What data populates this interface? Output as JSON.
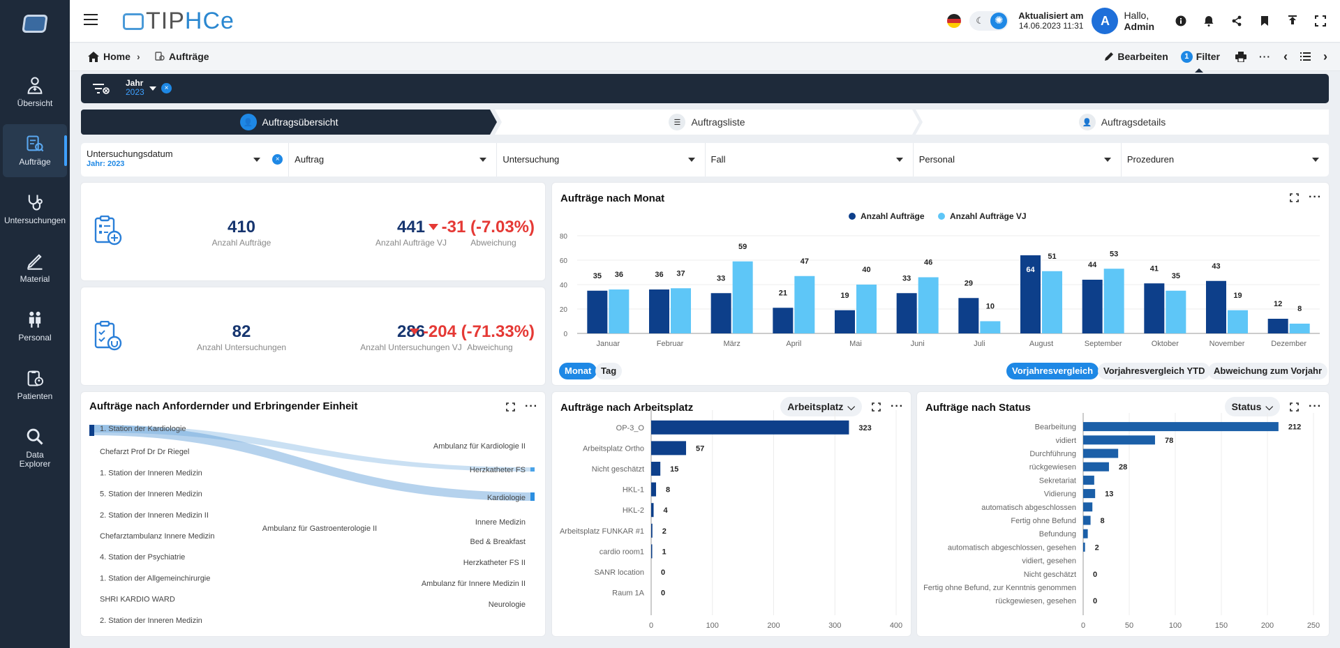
{
  "brand": {
    "name_a": "TIP",
    "name_b": "HCe"
  },
  "sidebar": {
    "items": [
      {
        "label": "Übersicht"
      },
      {
        "label": "Aufträge"
      },
      {
        "label": "Untersuchungen"
      },
      {
        "label": "Material"
      },
      {
        "label": "Personal"
      },
      {
        "label": "Patienten"
      },
      {
        "label": "Data Explorer"
      }
    ]
  },
  "header": {
    "updated_label": "Aktualisiert am",
    "updated_value": "14.06.2023 11:31",
    "avatar_letter": "A",
    "greeting": "Hallo,",
    "user": "Admin"
  },
  "breadcrumb": {
    "home": "Home",
    "current": "Aufträge",
    "edit": "Bearbeiten",
    "filter_count": "1",
    "filter": "Filter"
  },
  "filterbar": {
    "label": "Jahr",
    "value": "2023",
    "clear": "×"
  },
  "steps": [
    "Auftragsübersicht",
    "Auftragsliste",
    "Auftragsdetails"
  ],
  "dropdowns": [
    {
      "label": "Untersuchungsdatum",
      "value": "Jahr: 2023"
    },
    {
      "label": "Auftrag"
    },
    {
      "label": "Untersuchung"
    },
    {
      "label": "Fall"
    },
    {
      "label": "Personal"
    },
    {
      "label": "Prozeduren"
    }
  ],
  "kpi1": {
    "a_val": "410",
    "a_lbl": "Anzahl Aufträge",
    "b_val": "441",
    "b_lbl": "Anzahl Aufträge VJ",
    "c_val": "-31 (-7.03%)",
    "c_lbl": "Abweichung"
  },
  "kpi2": {
    "a_val": "82",
    "a_lbl": "Anzahl Untersuchungen",
    "b_val": "286",
    "b_lbl": "Anzahl Untersuchungen VJ",
    "c_val": "-204 (-71.33%)",
    "c_lbl": "Abweichung"
  },
  "monthly": {
    "title": "Aufträge nach Monat",
    "toggle": [
      "Monat",
      "Tag"
    ],
    "compare": [
      "Vorjahresvergleich",
      "Vorjahresvergleich YTD",
      "Abweichung zum Vorjahr"
    ]
  },
  "sankey": {
    "title": "Aufträge nach Anfordernder und Erbringender Einheit",
    "left": [
      "1. Station der Kardiologie",
      "Chefarzt Prof Dr Dr Riegel",
      "1. Station der Inneren Medizin",
      "5. Station der Inneren Medizin",
      "2. Station der Inneren Medizin II",
      "Chefarztambulanz Innere Medizin",
      "4. Station der Psychiatrie",
      "1. Station der Allgemeinchirurgie",
      "SHRI KARDIO WARD",
      "2. Station der Inneren Medizin"
    ],
    "right": [
      "Ambulanz für Kardiologie II",
      "Herzkatheter FS",
      "Kardiologie",
      "Innere Medizin",
      "Bed & Breakfast",
      "Herzkatheter FS II",
      "Ambulanz für Innere Medizin II",
      "Neurologie"
    ],
    "middle": "Ambulanz für Gastroenterologie II"
  },
  "arbeitsplatz": {
    "title": "Aufträge nach Arbeitsplatz",
    "select": "Arbeitsplatz"
  },
  "status": {
    "title": "Aufträge nach Status",
    "select": "Status"
  },
  "chart_data": [
    {
      "id": "monthly",
      "type": "bar",
      "title": "Aufträge nach Monat",
      "categories": [
        "Januar",
        "Februar",
        "März",
        "April",
        "Mai",
        "Juni",
        "Juli",
        "August",
        "September",
        "Oktober",
        "November",
        "Dezember"
      ],
      "series": [
        {
          "name": "Anzahl Aufträge",
          "color": "#0d3f8a",
          "values": [
            35,
            36,
            33,
            21,
            19,
            33,
            29,
            64,
            44,
            41,
            43,
            12
          ]
        },
        {
          "name": "Anzahl Aufträge VJ",
          "color": "#5ec6f7",
          "values": [
            36,
            37,
            59,
            47,
            40,
            46,
            10,
            51,
            53,
            35,
            19,
            8
          ]
        }
      ],
      "ylim": [
        0,
        80
      ],
      "yticks": [
        0,
        20,
        40,
        60,
        80
      ],
      "legend": "top-center"
    },
    {
      "id": "arbeitsplatz",
      "type": "bar",
      "orientation": "horizontal",
      "title": "Aufträge nach Arbeitsplatz",
      "categories": [
        "OP-3_O",
        "Arbeitsplatz Ortho",
        "Nicht geschätzt",
        "HKL-1",
        "HKL-2",
        "Arbeitsplatz FUNKAR #1",
        "cardio room1",
        "SANR location",
        "Raum 1A"
      ],
      "values": [
        323,
        57,
        15,
        8,
        4,
        2,
        1,
        0,
        0
      ],
      "xlim": [
        0,
        400
      ],
      "xticks": [
        0,
        100,
        200,
        300,
        400
      ]
    },
    {
      "id": "status",
      "type": "bar",
      "orientation": "horizontal",
      "title": "Aufträge nach Status",
      "categories": [
        "Bearbeitung",
        "vidiert",
        "Durchführung",
        "rückgewiesen",
        "Sekretariat",
        "Vidierung",
        "automatisch abgeschlossen",
        "Fertig ohne Befund",
        "Befundung",
        "automatisch abgeschlossen, gesehen",
        "vidiert, gesehen",
        "Nicht geschätzt",
        "Fertig ohne Befund, zur Kenntnis genommen",
        "rückgewiesen, gesehen"
      ],
      "values": [
        212,
        78,
        38,
        28,
        12,
        13,
        10,
        8,
        5,
        2,
        0,
        0,
        0,
        0
      ],
      "labels": [
        "212",
        "78",
        "",
        "28",
        "",
        "13",
        "",
        "8",
        "",
        "2",
        "",
        "0",
        "",
        "0"
      ],
      "xlim": [
        0,
        250
      ],
      "xticks": [
        0,
        50,
        100,
        150,
        200,
        250
      ]
    }
  ]
}
